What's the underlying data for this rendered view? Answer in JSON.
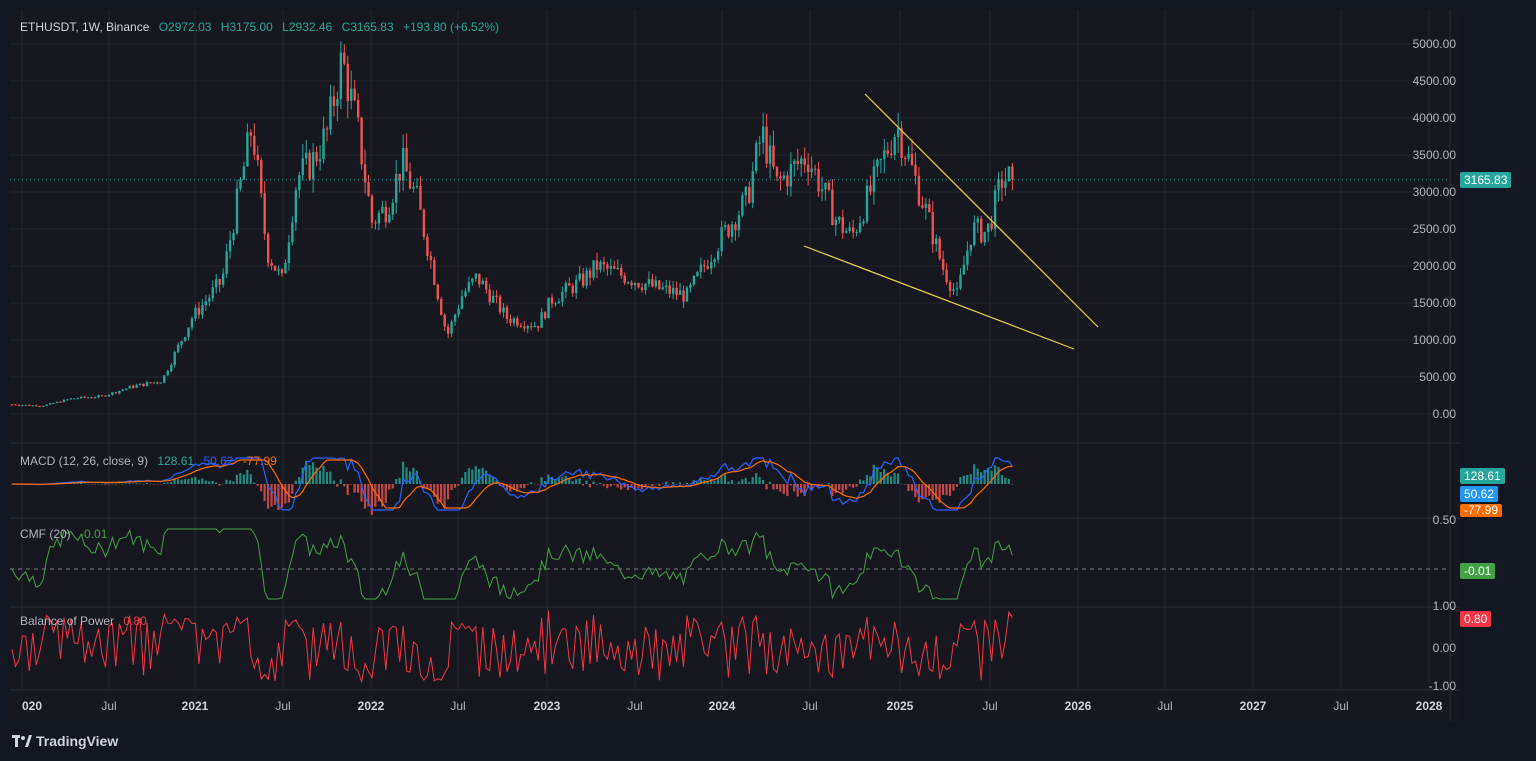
{
  "header": {
    "symbol": "ETHUSDT, 1W, Binance",
    "open": "O2972.03",
    "high": "H3175.00",
    "low": "L2932.46",
    "close": "C3165.83",
    "change": "+193.80 (+6.52%)"
  },
  "price_axis": [
    "5000.00",
    "4500.00",
    "4000.00",
    "3500.00",
    "3000.00",
    "2500.00",
    "2000.00",
    "1500.00",
    "1000.00",
    "500.00",
    "0.00"
  ],
  "price_badge": "3165.83",
  "macd": {
    "label": "MACD (12, 26, close, 9)",
    "v1": "128.61",
    "v2": "50.62",
    "v3": "-77.99"
  },
  "cmf": {
    "label": "CMF (20)",
    "value": "-0.01",
    "axis_top": "0.50"
  },
  "bop": {
    "label": "Balance of Power",
    "value": "0.80",
    "axis": [
      "1.00",
      "0.00",
      "-1.00"
    ]
  },
  "time_axis": [
    {
      "t": "020",
      "bold": true
    },
    {
      "t": "Jul",
      "bold": false
    },
    {
      "t": "2021",
      "bold": true
    },
    {
      "t": "Jul",
      "bold": false
    },
    {
      "t": "2022",
      "bold": true
    },
    {
      "t": "Jul",
      "bold": false
    },
    {
      "t": "2023",
      "bold": true
    },
    {
      "t": "Jul",
      "bold": false
    },
    {
      "t": "2024",
      "bold": true
    },
    {
      "t": "Jul",
      "bold": false
    },
    {
      "t": "2025",
      "bold": true
    },
    {
      "t": "Jul",
      "bold": false
    },
    {
      "t": "2026",
      "bold": true
    },
    {
      "t": "Jul",
      "bold": false
    },
    {
      "t": "2027",
      "bold": true
    },
    {
      "t": "Jul",
      "bold": false
    },
    {
      "t": "2028",
      "bold": true
    }
  ],
  "branding": "TradingView",
  "colors": {
    "up": "#26a69a",
    "down": "#ef5350",
    "trendline": "#e8d44d",
    "macd": "#2962ff",
    "signal": "#ff6d00",
    "cmf": "#43a047",
    "bop": "#f23645"
  },
  "chart_data": {
    "type": "candlestick",
    "price_points": [
      [
        "2020-01",
        130
      ],
      [
        "2020-03",
        110
      ],
      [
        "2020-05",
        210
      ],
      [
        "2020-07",
        240
      ],
      [
        "2020-09",
        370
      ],
      [
        "2020-11",
        450
      ],
      [
        "2021-01",
        1300
      ],
      [
        "2021-03",
        1800
      ],
      [
        "2021-05",
        3900
      ],
      [
        "2021-06",
        2200
      ],
      [
        "2021-07",
        1800
      ],
      [
        "2021-08",
        3200
      ],
      [
        "2021-09",
        3400
      ],
      [
        "2021-10",
        3800
      ],
      [
        "2021-11",
        4800
      ],
      [
        "2021-12",
        3900
      ],
      [
        "2022-01",
        2600
      ],
      [
        "2022-02",
        2800
      ],
      [
        "2022-03",
        3400
      ],
      [
        "2022-04",
        2900
      ],
      [
        "2022-05",
        2000
      ],
      [
        "2022-06",
        1050
      ],
      [
        "2022-07",
        1600
      ],
      [
        "2022-08",
        1850
      ],
      [
        "2022-10",
        1300
      ],
      [
        "2022-12",
        1200
      ],
      [
        "2023-01",
        1550
      ],
      [
        "2023-03",
        1800
      ],
      [
        "2023-04",
        2000
      ],
      [
        "2023-06",
        1850
      ],
      [
        "2023-08",
        1700
      ],
      [
        "2023-10",
        1600
      ],
      [
        "2023-12",
        2300
      ],
      [
        "2024-02",
        2900
      ],
      [
        "2024-03",
        3800
      ],
      [
        "2024-04",
        3100
      ],
      [
        "2024-06",
        3500
      ],
      [
        "2024-08",
        2600
      ],
      [
        "2024-09",
        2400
      ],
      [
        "2024-11",
        3400
      ],
      [
        "2024-12",
        3900
      ],
      [
        "2025-01",
        3300
      ],
      [
        "2025-02",
        2700
      ],
      [
        "2025-03",
        2000
      ],
      [
        "2025-04",
        1600
      ],
      [
        "2025-05",
        2500
      ],
      [
        "2025-06",
        2450
      ],
      [
        "2025-07",
        3165.83
      ]
    ]
  }
}
